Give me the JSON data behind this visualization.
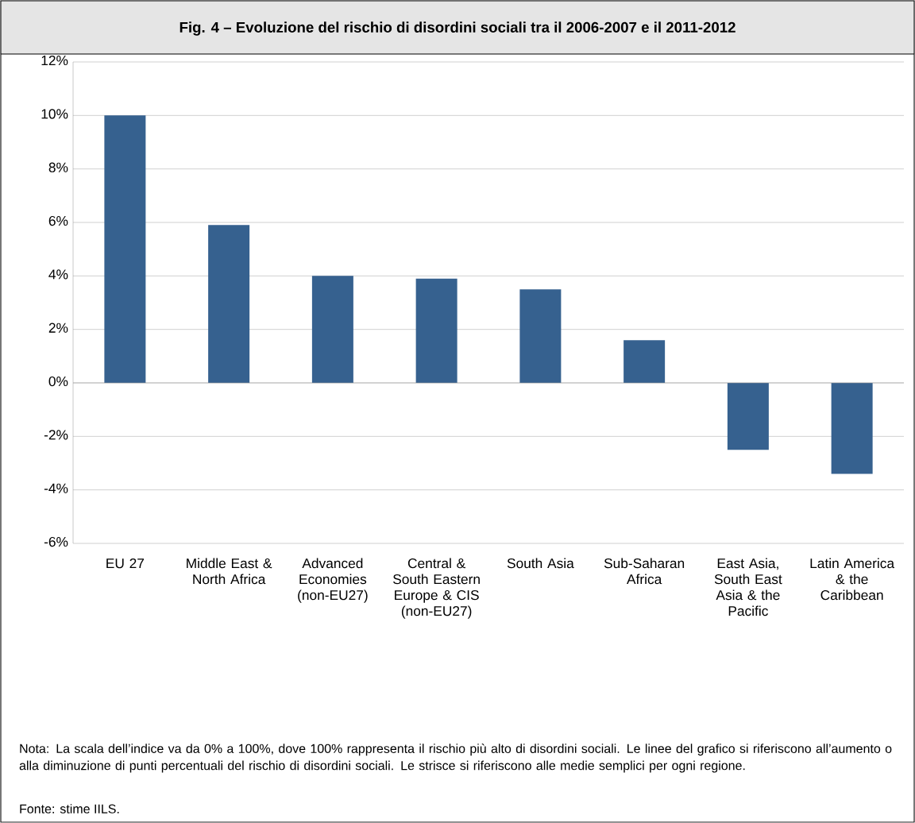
{
  "chart_data": {
    "type": "bar",
    "title": "Fig. 4 – Evoluzione del rischio di disordini sociali tra il 2006-2007 e il 2011-2012",
    "categories": [
      "EU 27",
      "Middle East & North Africa",
      "Advanced Economies (non-EU27)",
      "Central & South Eastern Europe & CIS (non-EU27)",
      "South Asia",
      "Sub-Saharan Africa",
      "East Asia, South East Asia & the Pacific",
      "Latin America & the Caribbean"
    ],
    "values": [
      10.0,
      5.9,
      4.0,
      3.9,
      3.5,
      1.6,
      -2.5,
      -3.4
    ],
    "color": "#36618f",
    "ylim": [
      -6,
      12
    ],
    "yticks": [
      {
        "value": -6,
        "label": "-6%"
      },
      {
        "value": -4,
        "label": "-4%"
      },
      {
        "value": -2,
        "label": "-2%"
      },
      {
        "value": 0,
        "label": "0%"
      },
      {
        "value": 2,
        "label": "2%"
      },
      {
        "value": 4,
        "label": "4%"
      },
      {
        "value": 6,
        "label": "6%"
      },
      {
        "value": 8,
        "label": "8%"
      },
      {
        "value": 10,
        "label": "10%"
      },
      {
        "value": 12,
        "label": "12%"
      }
    ],
    "grid": "y",
    "annotations": [
      "Nota: La scala dell’indice va da 0% a 100%, dove 100% rappresenta il rischio più alto di disordini sociali. Le linee del grafico si riferiscono all’aumento o alla diminuzione di punti percentuali del rischio di disordini sociali. Le strisce si riferiscono alle medie semplici per ogni regione.",
      "Fonte: stime IILS."
    ]
  }
}
